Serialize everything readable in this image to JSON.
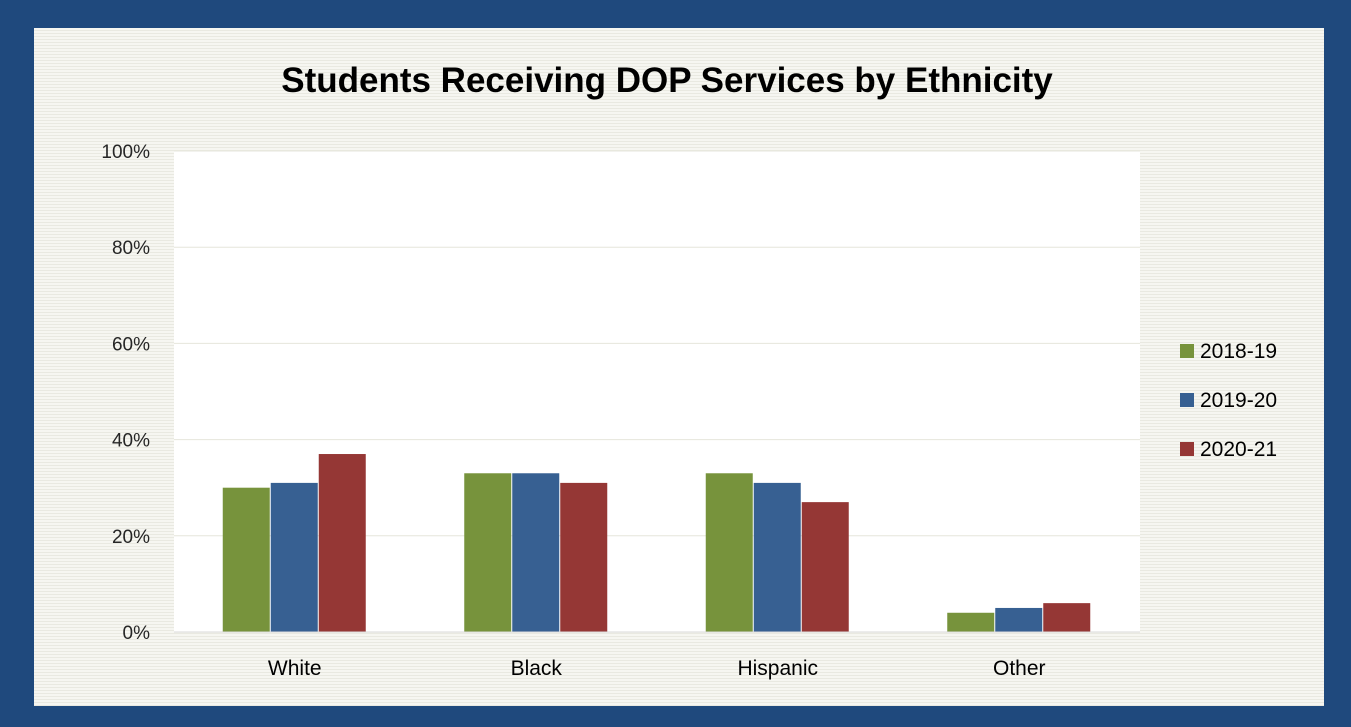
{
  "chart_data": {
    "type": "bar",
    "title": "Students Receiving DOP Services by Ethnicity",
    "xlabel": "",
    "ylabel": "",
    "categories": [
      "White",
      "Black",
      "Hispanic",
      "Other"
    ],
    "series": [
      {
        "name": "2018-19",
        "color": "#77933c",
        "values": [
          30,
          33,
          33,
          4
        ]
      },
      {
        "name": "2019-20",
        "color": "#376092",
        "values": [
          31,
          33,
          31,
          5
        ]
      },
      {
        "name": "2020-21",
        "color": "#953735",
        "values": [
          37,
          31,
          27,
          6
        ]
      }
    ],
    "ylim": [
      0,
      100
    ],
    "yticks": [
      0,
      20,
      40,
      60,
      80,
      100
    ],
    "ytick_labels": [
      "0%",
      "20%",
      "40%",
      "60%",
      "80%",
      "100%"
    ],
    "grid": true,
    "legend_position": "right"
  },
  "colors": {
    "frame": "#1f497d",
    "plot_background": "#ffffff",
    "gridline": "#e6e6dc"
  }
}
